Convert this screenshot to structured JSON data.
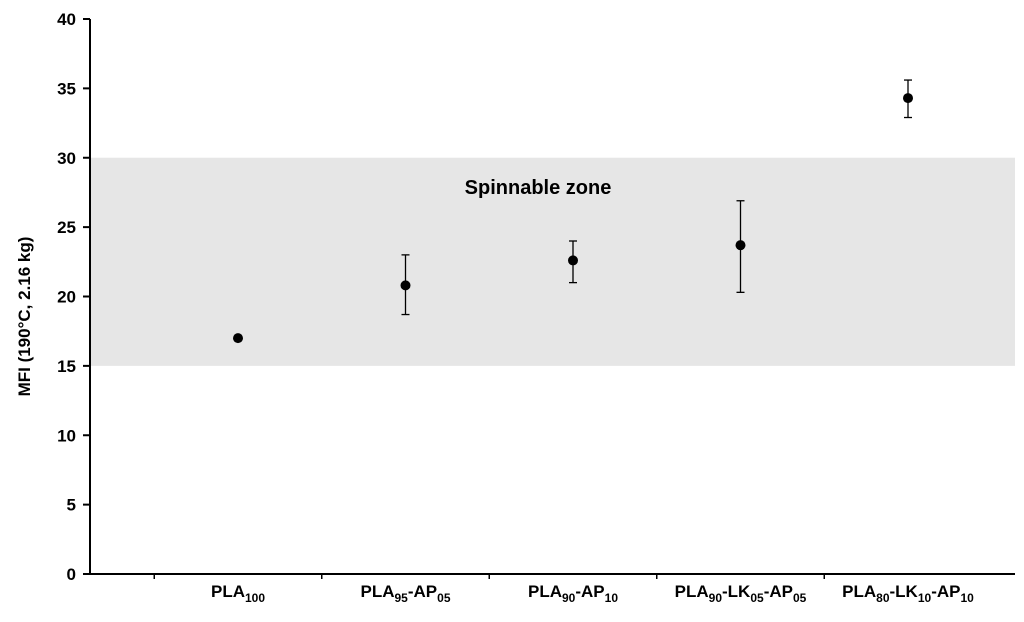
{
  "chart_data": {
    "type": "scatter",
    "title": "",
    "xlabel": "",
    "ylabel": "MFI (190°C, 2.16 kg)",
    "ylim": [
      0,
      40
    ],
    "yticks": [
      0,
      5,
      10,
      15,
      20,
      25,
      30,
      35,
      40
    ],
    "grid": false,
    "legend": "none",
    "categories": [
      {
        "parts": [
          {
            "t": "PLA"
          },
          {
            "t": "100",
            "sub": true
          }
        ]
      },
      {
        "parts": [
          {
            "t": "PLA"
          },
          {
            "t": "95",
            "sub": true
          },
          {
            "t": "-AP"
          },
          {
            "t": "05",
            "sub": true
          }
        ]
      },
      {
        "parts": [
          {
            "t": "PLA"
          },
          {
            "t": "90",
            "sub": true
          },
          {
            "t": "-AP"
          },
          {
            "t": "10",
            "sub": true
          }
        ]
      },
      {
        "parts": [
          {
            "t": "PLA"
          },
          {
            "t": "90",
            "sub": true
          },
          {
            "t": "-LK"
          },
          {
            "t": "05",
            "sub": true
          },
          {
            "t": "-AP"
          },
          {
            "t": "05",
            "sub": true
          }
        ]
      },
      {
        "parts": [
          {
            "t": "PLA"
          },
          {
            "t": "80",
            "sub": true
          },
          {
            "t": "-LK"
          },
          {
            "t": "10",
            "sub": true
          },
          {
            "t": "-AP"
          },
          {
            "t": "10",
            "sub": true
          }
        ]
      }
    ],
    "points": [
      {
        "y": 17.0,
        "err_low": null,
        "err_high": null
      },
      {
        "y": 20.8,
        "err_low": 18.7,
        "err_high": 23.0
      },
      {
        "y": 22.6,
        "err_low": 21.0,
        "err_high": 24.0
      },
      {
        "y": 23.7,
        "err_low": 20.3,
        "err_high": 26.9
      },
      {
        "y": 34.3,
        "err_low": 32.9,
        "err_high": 35.6
      }
    ],
    "band": {
      "label": "Spinnable zone",
      "y_from": 15,
      "y_to": 30,
      "color": "#e6e6e6"
    },
    "colors": {
      "marker": "#000000",
      "axis": "#000000"
    }
  }
}
